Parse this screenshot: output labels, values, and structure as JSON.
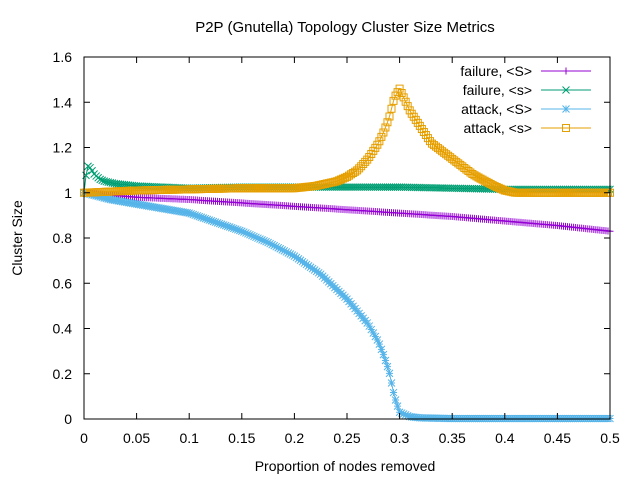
{
  "chart_data": {
    "type": "line",
    "title": "P2P (Gnutella) Topology Cluster Size Metrics",
    "xlabel": "Proportion of nodes removed",
    "ylabel": "Cluster Size",
    "xlim": [
      0,
      0.5
    ],
    "ylim": [
      0,
      1.6
    ],
    "grid": false,
    "legend_position": "top-right",
    "x_ticks": [
      0,
      0.05,
      0.1,
      0.15,
      0.2,
      0.25,
      0.3,
      0.35,
      0.4,
      0.45,
      0.5
    ],
    "x_tick_labels": [
      "0",
      "0.05",
      "0.1",
      "0.15",
      "0.2",
      "0.25",
      "0.3",
      "0.35",
      "0.4",
      "0.45",
      "0.5"
    ],
    "y_ticks": [
      0,
      0.2,
      0.4,
      0.6,
      0.8,
      1,
      1.2,
      1.4,
      1.6
    ],
    "y_tick_labels": [
      "0",
      "0.2",
      "0.4",
      "0.6",
      "0.8",
      "1",
      "1.2",
      "1.4",
      "1.6"
    ],
    "series": [
      {
        "name": "failure, <S>",
        "color": "#9400d3",
        "marker": "plus",
        "x": [
          0,
          0.05,
          0.1,
          0.15,
          0.2,
          0.25,
          0.3,
          0.35,
          0.4,
          0.45,
          0.5
        ],
        "y": [
          1.0,
          0.98,
          0.97,
          0.955,
          0.94,
          0.925,
          0.91,
          0.895,
          0.875,
          0.855,
          0.83
        ]
      },
      {
        "name": "failure, <s>",
        "color": "#009e73",
        "marker": "cross",
        "x": [
          0,
          0.003,
          0.006,
          0.01,
          0.015,
          0.02,
          0.03,
          0.05,
          0.1,
          0.15,
          0.2,
          0.25,
          0.3,
          0.35,
          0.4,
          0.45,
          0.5
        ],
        "y": [
          1.0,
          1.12,
          1.11,
          1.08,
          1.06,
          1.05,
          1.04,
          1.03,
          1.02,
          1.025,
          1.025,
          1.025,
          1.025,
          1.02,
          1.015,
          1.015,
          1.015
        ]
      },
      {
        "name": "attack, <S>",
        "color": "#56b4e9",
        "marker": "star",
        "x": [
          0,
          0.025,
          0.05,
          0.075,
          0.1,
          0.125,
          0.15,
          0.175,
          0.2,
          0.225,
          0.25,
          0.27,
          0.28,
          0.285,
          0.29,
          0.295,
          0.3,
          0.31,
          0.32,
          0.35,
          0.4,
          0.45,
          0.5
        ],
        "y": [
          1.0,
          0.97,
          0.95,
          0.93,
          0.91,
          0.87,
          0.83,
          0.78,
          0.72,
          0.64,
          0.53,
          0.42,
          0.34,
          0.28,
          0.21,
          0.1,
          0.03,
          0.01,
          0.005,
          0.002,
          0.002,
          0.002,
          0.002
        ]
      },
      {
        "name": "attack, <s>",
        "color": "#e69f00",
        "marker": "square",
        "x": [
          0,
          0.05,
          0.1,
          0.15,
          0.2,
          0.22,
          0.24,
          0.25,
          0.26,
          0.27,
          0.28,
          0.285,
          0.29,
          0.295,
          0.3,
          0.305,
          0.31,
          0.32,
          0.33,
          0.35,
          0.37,
          0.39,
          0.4,
          0.41,
          0.45,
          0.5
        ],
        "y": [
          1.0,
          1.01,
          1.015,
          1.02,
          1.02,
          1.03,
          1.05,
          1.07,
          1.1,
          1.15,
          1.22,
          1.27,
          1.33,
          1.42,
          1.46,
          1.41,
          1.36,
          1.29,
          1.22,
          1.15,
          1.08,
          1.03,
          1.01,
          1.0,
          1.0,
          1.0
        ]
      }
    ]
  }
}
